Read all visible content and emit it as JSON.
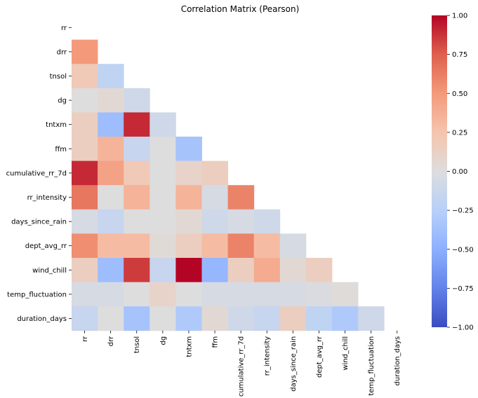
{
  "chart_data": {
    "type": "heatmap",
    "title": "Correlation Matrix (Pearson)",
    "xlabel": "",
    "ylabel": "",
    "colormap": "coolwarm",
    "mask": "upper-triangle-including-diagonal",
    "labels": [
      "rr",
      "drr",
      "tnsol",
      "dg",
      "tntxm",
      "ffm",
      "cumulative_rr_7d",
      "rr_intensity",
      "days_since_rain",
      "dept_avg_rr",
      "wind_chill",
      "temp_fluctuation",
      "duration_days"
    ],
    "colorbar": {
      "range": [
        -1.0,
        1.0
      ],
      "ticks": [
        1.0,
        0.75,
        0.5,
        0.25,
        0.0,
        -0.25,
        -0.5,
        -0.75,
        -1.0
      ],
      "tick_labels": [
        "1.00",
        "0.75",
        "0.50",
        "0.25",
        "0.00",
        "−0.25",
        "−0.50",
        "−0.75",
        "−1.00"
      ]
    },
    "values": [
      [],
      [
        0.5
      ],
      [
        0.2,
        -0.2
      ],
      [
        0.0,
        0.05,
        -0.1
      ],
      [
        0.15,
        -0.4,
        0.9,
        -0.1
      ],
      [
        0.15,
        0.35,
        -0.15,
        0.0,
        -0.35
      ],
      [
        0.9,
        0.45,
        0.2,
        0.0,
        0.1,
        0.15
      ],
      [
        0.65,
        0.0,
        0.35,
        0.0,
        0.35,
        -0.05,
        0.6
      ],
      [
        -0.05,
        -0.15,
        0.0,
        0.0,
        0.05,
        -0.1,
        -0.05,
        -0.1
      ],
      [
        0.55,
        0.3,
        0.3,
        0.03,
        0.15,
        0.3,
        0.6,
        0.3,
        -0.05
      ],
      [
        0.15,
        -0.4,
        0.85,
        -0.15,
        1.0,
        -0.45,
        0.15,
        0.4,
        0.05,
        0.15
      ],
      [
        -0.05,
        -0.05,
        0.0,
        0.1,
        0.0,
        -0.05,
        -0.05,
        -0.05,
        -0.05,
        -0.03,
        0.02
      ],
      [
        -0.15,
        0.0,
        -0.35,
        0.0,
        -0.3,
        0.05,
        -0.1,
        -0.15,
        0.15,
        -0.2,
        -0.3,
        -0.1
      ]
    ]
  }
}
